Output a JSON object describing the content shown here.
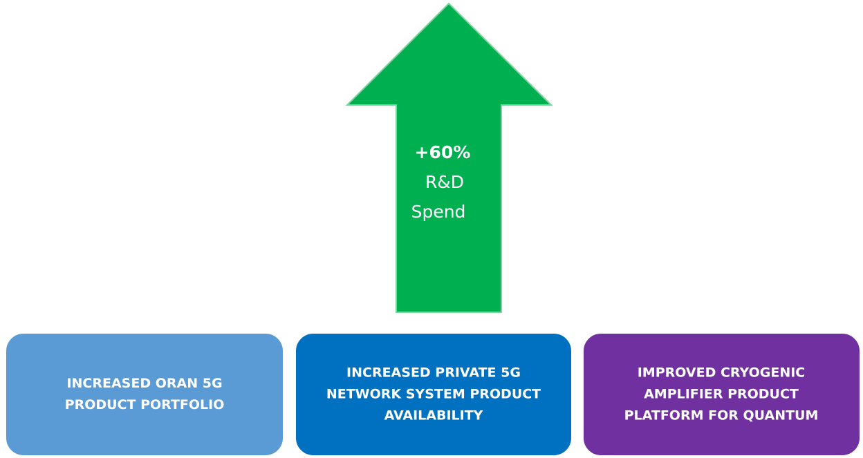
{
  "arrow": {
    "lines": [
      "+60%",
      "R&D",
      "Spend"
    ]
  },
  "boxes": [
    {
      "lines": [
        "INCREASED ORAN 5G",
        "PRODUCT PORTFOLIO"
      ]
    },
    {
      "lines": [
        "INCREASED PRIVATE 5G",
        "NETWORK SYSTEM PRODUCT",
        "AVAILABILITY"
      ]
    },
    {
      "lines": [
        "IMPROVED CRYOGENIC",
        "AMPLIFIER PRODUCT",
        "PLATFORM FOR QUANTUM"
      ]
    }
  ]
}
